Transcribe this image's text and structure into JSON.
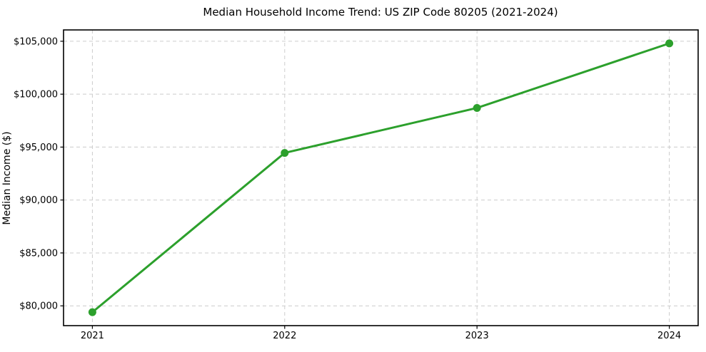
{
  "chart_data": {
    "type": "line",
    "title": "Median Household Income Trend: US ZIP Code 80205 (2021-2024)",
    "xlabel": "",
    "ylabel": "Median Income ($)",
    "x": [
      2021,
      2022,
      2023,
      2024
    ],
    "series": [
      {
        "name": "Median Household Income",
        "values": [
          79400,
          94450,
          98700,
          104800
        ]
      }
    ],
    "x_ticks": [
      2021,
      2022,
      2023,
      2024
    ],
    "x_tick_labels": [
      "2021",
      "2022",
      "2023",
      "2024"
    ],
    "y_ticks": [
      80000,
      85000,
      90000,
      95000,
      100000,
      105000
    ],
    "y_tick_labels": [
      "$80,000",
      "$85,000",
      "$90,000",
      "$95,000",
      "$100,000",
      "$105,000"
    ],
    "xlim": [
      2020.85,
      2024.15
    ],
    "ylim": [
      78130,
      106070
    ],
    "grid": true,
    "grid_style": "dashed",
    "legend": "none",
    "line_color": "#2ca02c",
    "marker_color": "#2ca02c",
    "marker_shape": "circle",
    "grid_color": "#cccccc",
    "axis_color": "#000000",
    "background_color": "#ffffff"
  }
}
